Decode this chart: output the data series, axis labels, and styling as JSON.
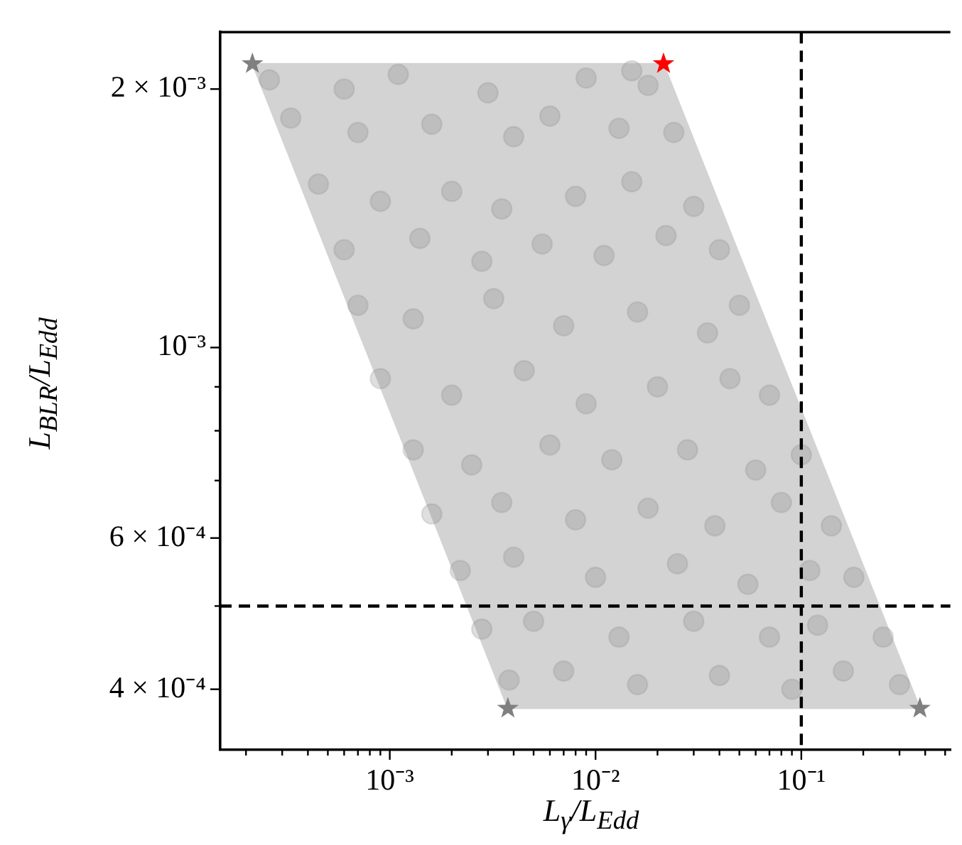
{
  "chart_data": {
    "type": "scatter",
    "xlabel": "L$_{γ}$/L$_{Edd}$",
    "ylabel": "L$_{BLR}$/L$_{Edd}$",
    "log": "xy",
    "grid": false,
    "legend": false,
    "xlim": [
      0.00015,
      0.53
    ],
    "xticks": [
      {
        "value": 0.0002,
        "label": null
      },
      {
        "value": 0.0003,
        "label": null
      },
      {
        "value": 0.0004,
        "label": null
      },
      {
        "value": 0.0005,
        "label": null
      },
      {
        "value": 0.0006,
        "label": null
      },
      {
        "value": 0.0007,
        "label": null
      },
      {
        "value": 0.0008,
        "label": null
      },
      {
        "value": 0.0009,
        "label": null
      },
      {
        "value": 0.001,
        "label": "10⁻³"
      },
      {
        "value": 0.002,
        "label": null
      },
      {
        "value": 0.003,
        "label": null
      },
      {
        "value": 0.004,
        "label": null
      },
      {
        "value": 0.005,
        "label": null
      },
      {
        "value": 0.006,
        "label": null
      },
      {
        "value": 0.007,
        "label": null
      },
      {
        "value": 0.008,
        "label": null
      },
      {
        "value": 0.009,
        "label": null
      },
      {
        "value": 0.01,
        "label": "10⁻²"
      },
      {
        "value": 0.02,
        "label": null
      },
      {
        "value": 0.03,
        "label": null
      },
      {
        "value": 0.04,
        "label": null
      },
      {
        "value": 0.05,
        "label": null
      },
      {
        "value": 0.06,
        "label": null
      },
      {
        "value": 0.07,
        "label": null
      },
      {
        "value": 0.08,
        "label": null
      },
      {
        "value": 0.09,
        "label": null
      },
      {
        "value": 0.1,
        "label": "10⁻¹"
      },
      {
        "value": 0.2,
        "label": null
      },
      {
        "value": 0.3,
        "label": null
      },
      {
        "value": 0.4,
        "label": null
      },
      {
        "value": 0.5,
        "label": null
      }
    ],
    "ylim": [
      0.00034,
      0.00233
    ],
    "yticks": [
      {
        "value": 0.0004,
        "label": "4 × 10⁻⁴"
      },
      {
        "value": 0.0005,
        "label": null
      },
      {
        "value": 0.0006,
        "label": "6 × 10⁻⁴"
      },
      {
        "value": 0.0007,
        "label": null
      },
      {
        "value": 0.0008,
        "label": null
      },
      {
        "value": 0.0009,
        "label": null
      },
      {
        "value": 0.001,
        "label": "10⁻³"
      },
      {
        "value": 0.002,
        "label": "2 × 10⁻³"
      }
    ],
    "ref_lines": [
      {
        "axis": "x",
        "value": 0.1,
        "color": "#000000",
        "line_style": "dashed"
      },
      {
        "axis": "y",
        "value": 0.0005,
        "color": "#000000",
        "line_style": "dashed"
      }
    ],
    "series": [
      {
        "type": "area",
        "color": "#d3d3d3",
        "x": [
          0.000215,
          0.0214,
          0.377,
          0.00375,
          0.000215
        ],
        "values": [
          0.00214,
          0.00214,
          0.00038,
          0.00038,
          0.00214
        ]
      },
      {
        "type": "scatter",
        "color": "#808080",
        "marker": "circle",
        "x": [
          0.00026,
          0.0006,
          0.0011,
          0.003,
          0.009,
          0.018,
          0.015,
          0.00033,
          0.0007,
          0.0016,
          0.004,
          0.006,
          0.013,
          0.024,
          0.00045,
          0.0009,
          0.002,
          0.0035,
          0.008,
          0.015,
          0.03,
          0.0006,
          0.0014,
          0.0028,
          0.0055,
          0.011,
          0.022,
          0.04,
          0.0007,
          0.0013,
          0.0032,
          0.007,
          0.016,
          0.035,
          0.05,
          0.0009,
          0.002,
          0.0045,
          0.009,
          0.02,
          0.045,
          0.07,
          0.0013,
          0.0025,
          0.006,
          0.012,
          0.028,
          0.06,
          0.1,
          0.0016,
          0.0035,
          0.008,
          0.018,
          0.038,
          0.08,
          0.14,
          0.0022,
          0.004,
          0.01,
          0.025,
          0.055,
          0.11,
          0.18,
          0.0028,
          0.005,
          0.013,
          0.03,
          0.07,
          0.12,
          0.25,
          0.0038,
          0.007,
          0.016,
          0.04,
          0.09,
          0.16,
          0.3
        ],
        "values": [
          0.00205,
          0.002,
          0.00208,
          0.00198,
          0.00206,
          0.00202,
          0.0021,
          0.00185,
          0.00178,
          0.00182,
          0.00176,
          0.00186,
          0.0018,
          0.00178,
          0.00155,
          0.00148,
          0.00152,
          0.00145,
          0.0015,
          0.00156,
          0.00146,
          0.0013,
          0.00134,
          0.00126,
          0.00132,
          0.00128,
          0.00135,
          0.0013,
          0.00112,
          0.00108,
          0.00114,
          0.00106,
          0.0011,
          0.00104,
          0.00112,
          0.00092,
          0.00088,
          0.00094,
          0.00086,
          0.0009,
          0.00092,
          0.00088,
          0.00076,
          0.00073,
          0.00077,
          0.00074,
          0.00076,
          0.00072,
          0.00075,
          0.00064,
          0.00066,
          0.00063,
          0.00065,
          0.00062,
          0.00066,
          0.00062,
          0.00055,
          0.00057,
          0.00054,
          0.00056,
          0.00053,
          0.00055,
          0.00054,
          0.00047,
          0.00048,
          0.00046,
          0.00048,
          0.00046,
          0.000475,
          0.00046,
          0.00041,
          0.00042,
          0.000405,
          0.000415,
          0.0004,
          0.00042,
          0.000405
        ]
      },
      {
        "type": "scatter",
        "marker": "star",
        "colors": [
          "#808080",
          "#ff0000",
          "#808080",
          "#808080"
        ],
        "x": [
          0.000215,
          0.0214,
          0.00375,
          0.377
        ],
        "values": [
          0.00214,
          0.00214,
          0.00038,
          0.00038
        ]
      }
    ]
  }
}
